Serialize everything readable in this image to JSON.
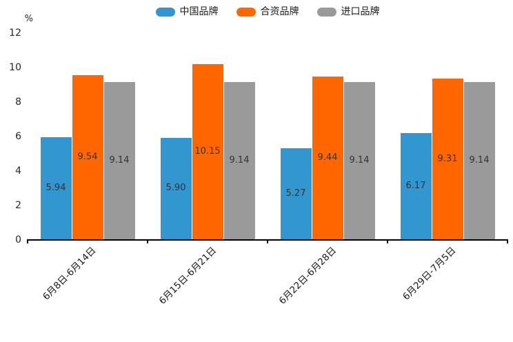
{
  "chart_data": {
    "type": "bar",
    "title": "",
    "categories": [
      "6月8日-6月14日",
      "6月15日-6月21日",
      "6月22日-6月28日",
      "6月29日-7月5日"
    ],
    "series": [
      {
        "name": "中国品牌",
        "color": "#3296D1",
        "values": [
          5.94,
          5.9,
          5.27,
          6.17
        ]
      },
      {
        "name": "合资品牌",
        "color": "#FF6600",
        "values": [
          9.54,
          10.15,
          9.44,
          9.31
        ]
      },
      {
        "name": "进口品牌",
        "color": "#9A9A9A",
        "values": [
          9.14,
          9.14,
          9.14,
          9.14
        ]
      }
    ],
    "xlabel": "",
    "ylabel": "%",
    "yticks": [
      0,
      2,
      4,
      6,
      8,
      10,
      12
    ],
    "ylim": [
      0,
      12
    ],
    "grid": false,
    "legend_position": "top",
    "value_labels": true,
    "value_label_format": "0.00",
    "text_color": "#262626",
    "axis_color": "#000000"
  }
}
